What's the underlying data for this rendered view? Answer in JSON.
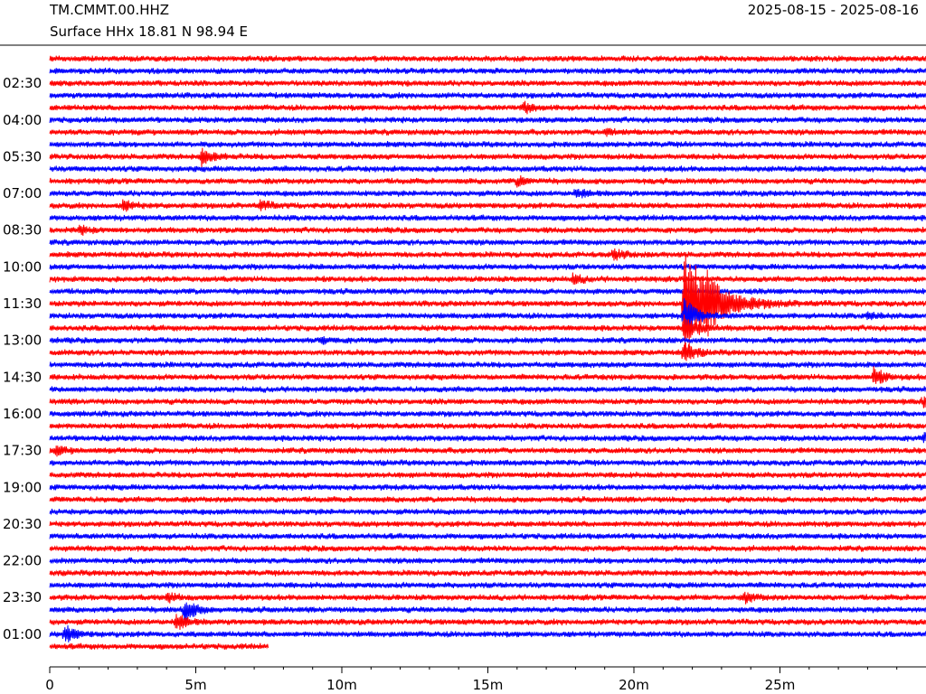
{
  "header": {
    "station": "TM.CMMT.00.HHZ",
    "location": "Surface HHx  18.81 N 98.94 E",
    "date_range": "2025-08-15 - 2025-08-16"
  },
  "chart_data": {
    "type": "line",
    "title": "",
    "xlabel": "",
    "ylabel": "",
    "x_unit": "minutes",
    "xlim": [
      0,
      30
    ],
    "x_ticks": [
      {
        "value": 0,
        "label": "0"
      },
      {
        "value": 5,
        "label": "5m"
      },
      {
        "value": 10,
        "label": "10m"
      },
      {
        "value": 15,
        "label": "15m"
      },
      {
        "value": 20,
        "label": "20m"
      },
      {
        "value": 25,
        "label": "25m"
      }
    ],
    "y_tick_labels": [
      "02:30",
      "04:00",
      "05:30",
      "07:00",
      "08:30",
      "10:00",
      "11:30",
      "13:00",
      "14:30",
      "16:00",
      "17:30",
      "19:00",
      "20:30",
      "22:00",
      "23:30",
      "01:00"
    ],
    "trace_count": 49,
    "trace_colors": [
      "#ff0000",
      "#0000ff"
    ],
    "last_trace_end_minute": 7.5,
    "events": [
      {
        "trace": 4,
        "minute": 16.2,
        "amplitude": 6
      },
      {
        "trace": 6,
        "minute": 19.0,
        "amplitude": 4
      },
      {
        "trace": 8,
        "minute": 5.2,
        "amplitude": 10
      },
      {
        "trace": 10,
        "minute": 16.0,
        "amplitude": 5
      },
      {
        "trace": 11,
        "minute": 18.0,
        "amplitude": 5
      },
      {
        "trace": 12,
        "minute": 2.5,
        "amplitude": 6
      },
      {
        "trace": 12,
        "minute": 7.2,
        "amplitude": 5
      },
      {
        "trace": 14,
        "minute": 1.0,
        "amplitude": 4
      },
      {
        "trace": 16,
        "minute": 19.3,
        "amplitude": 6
      },
      {
        "trace": 18,
        "minute": 17.9,
        "amplitude": 5
      },
      {
        "trace": 20,
        "minute": 21.7,
        "amplitude": 65
      },
      {
        "trace": 20,
        "minute": 22.4,
        "amplitude": 16
      },
      {
        "trace": 21,
        "minute": 21.7,
        "amplitude": 25
      },
      {
        "trace": 21,
        "minute": 28.0,
        "amplitude": 4
      },
      {
        "trace": 22,
        "minute": 21.7,
        "amplitude": 20
      },
      {
        "trace": 23,
        "minute": 9.3,
        "amplitude": 4
      },
      {
        "trace": 24,
        "minute": 21.7,
        "amplitude": 12
      },
      {
        "trace": 26,
        "minute": 28.2,
        "amplitude": 10
      },
      {
        "trace": 28,
        "minute": 29.9,
        "amplitude": 6
      },
      {
        "trace": 31,
        "minute": 29.9,
        "amplitude": 6
      },
      {
        "trace": 32,
        "minute": 0.2,
        "amplitude": 5
      },
      {
        "trace": 44,
        "minute": 4.0,
        "amplitude": 5
      },
      {
        "trace": 44,
        "minute": 23.8,
        "amplitude": 5
      },
      {
        "trace": 45,
        "minute": 4.6,
        "amplitude": 14
      },
      {
        "trace": 46,
        "minute": 4.3,
        "amplitude": 10
      },
      {
        "trace": 47,
        "minute": 0.5,
        "amplitude": 10
      }
    ],
    "grid": false
  }
}
